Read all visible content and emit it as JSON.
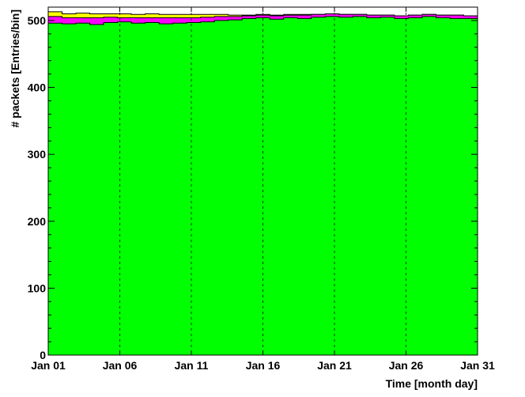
{
  "chart_data": {
    "type": "area",
    "stacked": true,
    "xlabel": "Time [month day]",
    "ylabel": "# packets [Entries/bin]",
    "xlim": [
      1,
      31
    ],
    "ylim": [
      0,
      520
    ],
    "x_ticks": [
      1,
      6,
      11,
      16,
      21,
      26,
      31
    ],
    "x_tick_labels": [
      "Jan 01",
      "Jan 06",
      "Jan 11",
      "Jan 16",
      "Jan 21",
      "Jan 26",
      "Jan 31"
    ],
    "y_ticks": [
      0,
      100,
      200,
      300,
      400,
      500
    ],
    "y_tick_labels": [
      "0",
      "100",
      "200",
      "300",
      "400",
      "500"
    ],
    "x": [
      1,
      2,
      3,
      4,
      5,
      6,
      7,
      8,
      9,
      10,
      11,
      12,
      13,
      14,
      15,
      16,
      17,
      18,
      19,
      20,
      21,
      22,
      23,
      24,
      25,
      26,
      27,
      28,
      29,
      30,
      31
    ],
    "grid": "x-only dashed",
    "series": [
      {
        "color": "#00ff00",
        "values": [
          496,
          495,
          496,
          494,
          497,
          498,
          496,
          497,
          495,
          496,
          497,
          498,
          500,
          501,
          503,
          504,
          502,
          504,
          503,
          505,
          506,
          505,
          506,
          504,
          505,
          503,
          504,
          506,
          504,
          503,
          503
        ]
      },
      {
        "color": "#ff00ff",
        "values": [
          10,
          9,
          8,
          10,
          8,
          6,
          8,
          7,
          9,
          8,
          7,
          7,
          6,
          5,
          4,
          4,
          5,
          4,
          5,
          4,
          4,
          4,
          3,
          4,
          3,
          4,
          4,
          3,
          4,
          5,
          4
        ]
      },
      {
        "color": "#ffff00",
        "values": [
          7,
          6,
          7,
          6,
          5,
          6,
          5,
          6,
          5,
          5,
          5,
          4,
          3,
          2,
          1,
          1,
          1,
          1,
          1,
          0,
          0,
          0,
          0,
          0,
          0,
          0,
          0,
          0,
          0,
          0,
          0
        ]
      }
    ]
  }
}
